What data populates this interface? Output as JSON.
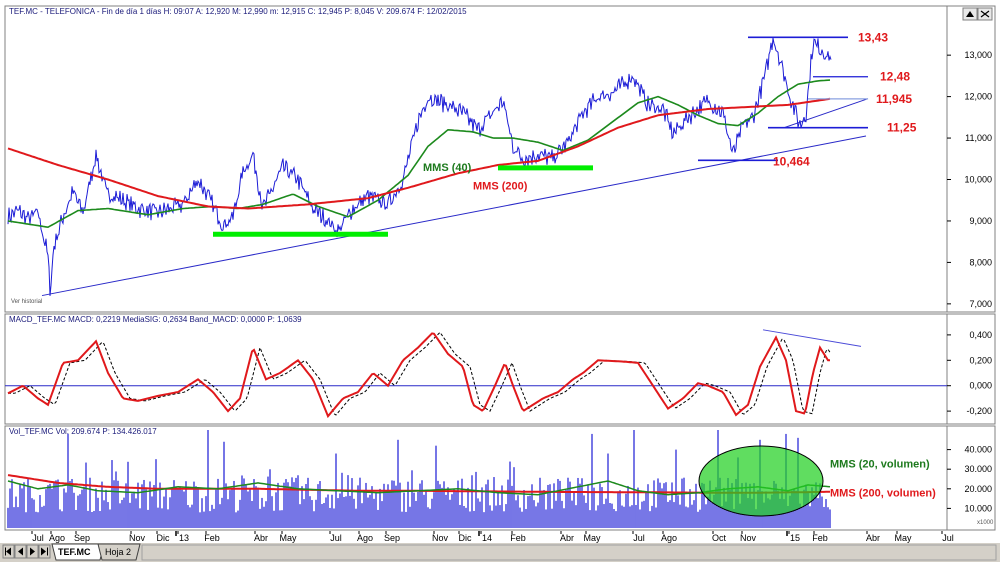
{
  "panels": {
    "price_title": "TEF.MC - TELEFONICA - Fin de día 1 días H: 09:07 A: 12,920 M: 12,990 m: 12,915 C: 12,945 P: 8,045 V: 209.674 F: 12/02/2015",
    "macd_title": "MACD_TEF.MC MACD: 0,2219 MediaSIG: 0,2634 Band_MACD: 0,0000 P: 1,0639",
    "vol_title": "Vol_TEF.MC Vol: 209.674 P: 134.426.017",
    "watermark": "Ver historial",
    "vol_scale_note": "x1000"
  },
  "tabs": {
    "sheet1": "TEF.MC",
    "sheet2": "Hoja 2"
  },
  "chart_data": [
    {
      "type": "line",
      "panel": "price",
      "ylim": [
        6.9,
        13.8
      ],
      "yticks": [
        "7,000",
        "8,000",
        "9,000",
        "10,000",
        "11,000",
        "12,000",
        "13,000"
      ],
      "series": [
        {
          "name": "MMS (40)",
          "color": "#1d8a1d"
        },
        {
          "name": "MMS (200)",
          "color": "#e0191c"
        }
      ],
      "price_anchors": [
        [
          0,
          9.1
        ],
        [
          10,
          9.25
        ],
        [
          20,
          9.05
        ],
        [
          30,
          9.2
        ],
        [
          40,
          8.15
        ],
        [
          42,
          7.3
        ],
        [
          46,
          8.4
        ],
        [
          55,
          9.1
        ],
        [
          65,
          9.7
        ],
        [
          75,
          9.2
        ],
        [
          88,
          10.6
        ],
        [
          98,
          9.7
        ],
        [
          115,
          9.5
        ],
        [
          130,
          9.3
        ],
        [
          150,
          9.2
        ],
        [
          175,
          9.4
        ],
        [
          190,
          10.0
        ],
        [
          200,
          9.6
        ],
        [
          215,
          8.9
        ],
        [
          225,
          9.1
        ],
        [
          235,
          10.2
        ],
        [
          245,
          10.6
        ],
        [
          255,
          9.3
        ],
        [
          275,
          10.3
        ],
        [
          290,
          10.0
        ],
        [
          305,
          9.3
        ],
        [
          320,
          9.0
        ],
        [
          330,
          8.75
        ],
        [
          345,
          9.3
        ],
        [
          360,
          9.6
        ],
        [
          380,
          9.4
        ],
        [
          395,
          10.0
        ],
        [
          410,
          11.4
        ],
        [
          420,
          12.0
        ],
        [
          440,
          11.8
        ],
        [
          455,
          11.6
        ],
        [
          470,
          11.2
        ],
        [
          495,
          11.9
        ],
        [
          505,
          10.8
        ],
        [
          515,
          10.5
        ],
        [
          530,
          10.6
        ],
        [
          545,
          10.5
        ],
        [
          560,
          10.9
        ],
        [
          575,
          11.6
        ],
        [
          590,
          12.0
        ],
        [
          605,
          12.1
        ],
        [
          625,
          12.5
        ],
        [
          640,
          11.8
        ],
        [
          655,
          11.7
        ],
        [
          665,
          11.1
        ],
        [
          680,
          11.5
        ],
        [
          700,
          11.9
        ],
        [
          715,
          11.6
        ],
        [
          725,
          10.6
        ],
        [
          735,
          11.3
        ],
        [
          745,
          11.5
        ],
        [
          758,
          12.6
        ],
        [
          765,
          13.45
        ],
        [
          772,
          12.9
        ],
        [
          782,
          12.0
        ],
        [
          792,
          11.3
        ],
        [
          798,
          11.6
        ],
        [
          805,
          13.3
        ],
        [
          815,
          13.1
        ],
        [
          823,
          12.9
        ]
      ],
      "ma40_anchors": [
        [
          0,
          9.0
        ],
        [
          40,
          8.85
        ],
        [
          70,
          9.25
        ],
        [
          100,
          9.3
        ],
        [
          140,
          9.15
        ],
        [
          175,
          9.3
        ],
        [
          205,
          9.35
        ],
        [
          230,
          9.3
        ],
        [
          255,
          9.4
        ],
        [
          285,
          9.65
        ],
        [
          310,
          9.35
        ],
        [
          340,
          9.1
        ],
        [
          370,
          9.5
        ],
        [
          400,
          10.1
        ],
        [
          420,
          10.8
        ],
        [
          440,
          11.2
        ],
        [
          465,
          11.15
        ],
        [
          485,
          11.0
        ],
        [
          505,
          11.0
        ],
        [
          530,
          10.9
        ],
        [
          555,
          10.7
        ],
        [
          580,
          10.95
        ],
        [
          605,
          11.4
        ],
        [
          630,
          11.85
        ],
        [
          650,
          12.0
        ],
        [
          670,
          11.8
        ],
        [
          690,
          11.55
        ],
        [
          710,
          11.35
        ],
        [
          730,
          11.3
        ],
        [
          750,
          11.6
        ],
        [
          770,
          12.0
        ],
        [
          790,
          12.3
        ],
        [
          810,
          12.38
        ],
        [
          823,
          12.4
        ]
      ],
      "ma200_anchors": [
        [
          0,
          10.75
        ],
        [
          50,
          10.35
        ],
        [
          100,
          10.0
        ],
        [
          150,
          9.6
        ],
        [
          200,
          9.35
        ],
        [
          240,
          9.3
        ],
        [
          300,
          9.4
        ],
        [
          360,
          9.55
        ],
        [
          400,
          9.8
        ],
        [
          450,
          10.15
        ],
        [
          490,
          10.35
        ],
        [
          530,
          10.45
        ],
        [
          570,
          10.8
        ],
        [
          610,
          11.25
        ],
        [
          650,
          11.55
        ],
        [
          700,
          11.7
        ],
        [
          740,
          11.75
        ],
        [
          780,
          11.8
        ],
        [
          823,
          11.95
        ]
      ],
      "annotations": [
        "13,43",
        "12,48",
        "11,945",
        "11,25",
        "10,464",
        "MMS (40)",
        "MMS (200)"
      ]
    },
    {
      "type": "line",
      "panel": "macd",
      "ylim": [
        -0.27,
        0.47
      ],
      "yticks": [
        "0,400",
        "0,200",
        "0,000",
        "-0,200"
      ],
      "series": [
        {
          "name": "MACD",
          "color": "#e0191c"
        },
        {
          "name": "MediaSIG",
          "color": "#000000"
        }
      ],
      "macd_anchors": [
        [
          0,
          -0.06
        ],
        [
          15,
          0.0
        ],
        [
          30,
          -0.1
        ],
        [
          40,
          -0.15
        ],
        [
          55,
          0.18
        ],
        [
          70,
          0.2
        ],
        [
          88,
          0.35
        ],
        [
          100,
          0.1
        ],
        [
          115,
          -0.1
        ],
        [
          130,
          -0.12
        ],
        [
          150,
          -0.08
        ],
        [
          170,
          -0.05
        ],
        [
          190,
          0.05
        ],
        [
          205,
          -0.05
        ],
        [
          220,
          -0.2
        ],
        [
          232,
          -0.1
        ],
        [
          245,
          0.3
        ],
        [
          258,
          0.05
        ],
        [
          272,
          0.1
        ],
        [
          290,
          0.2
        ],
        [
          305,
          0.05
        ],
        [
          320,
          -0.24
        ],
        [
          335,
          -0.1
        ],
        [
          350,
          -0.05
        ],
        [
          365,
          0.1
        ],
        [
          380,
          0.0
        ],
        [
          395,
          0.2
        ],
        [
          410,
          0.3
        ],
        [
          425,
          0.42
        ],
        [
          440,
          0.25
        ],
        [
          455,
          0.15
        ],
        [
          465,
          -0.15
        ],
        [
          475,
          -0.2
        ],
        [
          487,
          0.0
        ],
        [
          497,
          0.18
        ],
        [
          505,
          0.0
        ],
        [
          515,
          -0.2
        ],
        [
          525,
          -0.15
        ],
        [
          535,
          -0.1
        ],
        [
          550,
          -0.05
        ],
        [
          565,
          0.05
        ],
        [
          575,
          0.1
        ],
        [
          590,
          0.2
        ],
        [
          615,
          0.19
        ],
        [
          630,
          0.18
        ],
        [
          645,
          0.0
        ],
        [
          660,
          -0.18
        ],
        [
          675,
          -0.1
        ],
        [
          690,
          0.02
        ],
        [
          700,
          0.0
        ],
        [
          715,
          -0.05
        ],
        [
          728,
          -0.23
        ],
        [
          740,
          -0.15
        ],
        [
          752,
          0.15
        ],
        [
          768,
          0.38
        ],
        [
          778,
          0.2
        ],
        [
          788,
          -0.2
        ],
        [
          797,
          -0.22
        ],
        [
          805,
          0.1
        ],
        [
          812,
          0.3
        ],
        [
          820,
          0.2
        ]
      ],
      "annotations": []
    },
    {
      "type": "bar",
      "panel": "volume",
      "ylim": [
        0,
        50
      ],
      "yticks": [
        "40.000",
        "30.000",
        "20.000",
        "10.000"
      ],
      "series": [
        {
          "name": "MMS (20, volumen)",
          "color": "#1d8a1d"
        },
        {
          "name": "MMS (200, volumen)",
          "color": "#e0191c"
        },
        {
          "name": "Vol",
          "color": "#1c1cd6"
        }
      ],
      "spikes": [
        [
          60,
          48
        ],
        [
          143,
          42
        ],
        [
          200,
          50
        ],
        [
          216,
          44
        ],
        [
          253,
          48
        ],
        [
          328,
          38
        ],
        [
          390,
          45
        ],
        [
          428,
          42
        ],
        [
          535,
          40
        ],
        [
          584,
          48
        ],
        [
          600,
          38
        ],
        [
          626,
          50
        ],
        [
          668,
          40
        ],
        [
          710,
          50
        ],
        [
          730,
          36
        ],
        [
          752,
          45
        ],
        [
          778,
          48
        ],
        [
          790,
          46
        ],
        [
          805,
          42
        ],
        [
          815,
          38
        ]
      ],
      "ma20_anchors": [
        [
          0,
          24
        ],
        [
          30,
          20
        ],
        [
          60,
          22
        ],
        [
          90,
          19
        ],
        [
          130,
          18
        ],
        [
          170,
          21
        ],
        [
          210,
          20
        ],
        [
          250,
          23
        ],
        [
          290,
          20
        ],
        [
          330,
          19
        ],
        [
          370,
          18
        ],
        [
          410,
          19
        ],
        [
          450,
          20
        ],
        [
          490,
          18
        ],
        [
          530,
          17
        ],
        [
          570,
          21
        ],
        [
          600,
          24
        ],
        [
          630,
          19
        ],
        [
          660,
          17
        ],
        [
          690,
          18
        ],
        [
          720,
          20
        ],
        [
          750,
          21
        ],
        [
          780,
          19
        ],
        [
          800,
          22
        ],
        [
          823,
          21
        ]
      ],
      "ma200_anchors": [
        [
          0,
          27
        ],
        [
          50,
          23
        ],
        [
          100,
          21
        ],
        [
          150,
          20
        ],
        [
          200,
          20
        ],
        [
          250,
          20
        ],
        [
          300,
          19.5
        ],
        [
          350,
          19
        ],
        [
          400,
          19
        ],
        [
          450,
          18.8
        ],
        [
          500,
          18.6
        ],
        [
          550,
          18.4
        ],
        [
          600,
          18.3
        ],
        [
          650,
          18.2
        ],
        [
          700,
          18.0
        ],
        [
          750,
          18.0
        ],
        [
          800,
          18.3
        ],
        [
          823,
          18.5
        ]
      ],
      "annotations": [
        "MMS (20, volumen)",
        "MMS (200, volumen)"
      ]
    }
  ],
  "x_axis": {
    "months": [
      "Jul",
      "Ago",
      "Sep",
      "Nov",
      "Dic",
      "13",
      "Feb",
      "Abr",
      "May",
      "Jul",
      "Ago",
      "Sep",
      "Nov",
      "Dic",
      "14",
      "Feb",
      "Abr",
      "May",
      "Jul",
      "Ago",
      "Oct",
      "Nov",
      "15",
      "Feb",
      "Abr",
      "May",
      "Jul"
    ]
  },
  "colors": {
    "price_line": "#1c1cd6",
    "ma40": "#1d8a1d",
    "ma200": "#e0191c",
    "support": "#00ee00",
    "trend": "#2929c8",
    "ellipse": "#22d022"
  }
}
